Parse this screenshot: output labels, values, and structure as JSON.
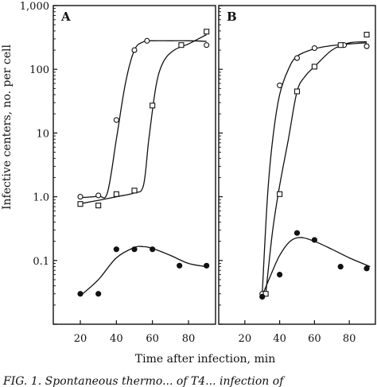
{
  "chart_data": {
    "type": "scatter",
    "ylabel": "Infective centers, no. per cell",
    "xlabel": "Time after infection, min",
    "caption": "FIG. 1.  Spontaneous thermo... of T4... infection of",
    "yscale": "log",
    "ylim": [
      0.01,
      1000
    ],
    "y_ticks": [
      {
        "value": 1000,
        "label": "1,000"
      },
      {
        "value": 100,
        "label": "100"
      },
      {
        "value": 10,
        "label": "10"
      },
      {
        "value": 1,
        "label": "1.0"
      },
      {
        "value": 0.1,
        "label": "0.1"
      }
    ],
    "panels": [
      {
        "label": "A",
        "xlim": [
          5,
          95
        ],
        "x_ticks": [
          20,
          40,
          60,
          80
        ],
        "series": [
          {
            "marker": "open-circle",
            "points": [
              [
                20,
                1.0
              ],
              [
                30,
                1.05
              ],
              [
                40,
                16
              ],
              [
                50,
                200
              ],
              [
                57,
                280
              ],
              [
                90,
                240
              ]
            ],
            "curve": [
              [
                20,
                0.97
              ],
              [
                30,
                1.02
              ],
              [
                35,
                1.15
              ],
              [
                40,
                8
              ],
              [
                45,
                60
              ],
              [
                50,
                200
              ],
              [
                55,
                270
              ],
              [
                60,
                280
              ],
              [
                70,
                280
              ],
              [
                80,
                280
              ],
              [
                90,
                275
              ]
            ]
          },
          {
            "marker": "open-square",
            "points": [
              [
                20,
                0.77
              ],
              [
                30,
                0.73
              ],
              [
                40,
                1.1
              ],
              [
                50,
                1.25
              ],
              [
                60,
                27
              ],
              [
                76,
                240
              ],
              [
                90,
                390
              ]
            ],
            "curve": [
              [
                20,
                0.78
              ],
              [
                30,
                0.88
              ],
              [
                40,
                1.0
              ],
              [
                50,
                1.15
              ],
              [
                55,
                1.5
              ],
              [
                58,
                8
              ],
              [
                62,
                55
              ],
              [
                66,
                130
              ],
              [
                72,
                200
              ],
              [
                80,
                250
              ],
              [
                90,
                350
              ]
            ]
          },
          {
            "marker": "filled-circle",
            "points": [
              [
                20,
                0.03
              ],
              [
                30,
                0.03
              ],
              [
                40,
                0.15
              ],
              [
                50,
                0.15
              ],
              [
                60,
                0.15
              ],
              [
                75,
                0.083
              ],
              [
                90,
                0.083
              ]
            ],
            "curve": [
              [
                20,
                0.028
              ],
              [
                30,
                0.05
              ],
              [
                40,
                0.11
              ],
              [
                50,
                0.16
              ],
              [
                55,
                0.165
              ],
              [
                60,
                0.155
              ],
              [
                70,
                0.12
              ],
              [
                80,
                0.09
              ],
              [
                90,
                0.08
              ]
            ]
          }
        ]
      },
      {
        "label": "B",
        "xlim": [
          5,
          95
        ],
        "x_ticks": [
          20,
          40,
          60,
          80
        ],
        "series": [
          {
            "marker": "open-circle",
            "points": [
              [
                30,
                0.03
              ],
              [
                40,
                56
              ],
              [
                50,
                150
              ],
              [
                60,
                215
              ],
              [
                77,
                240
              ],
              [
                90,
                230
              ]
            ],
            "curve": [
              [
                30,
                0.03
              ],
              [
                33,
                1
              ],
              [
                36,
                8
              ],
              [
                40,
                40
              ],
              [
                45,
                100
              ],
              [
                50,
                160
              ],
              [
                60,
                210
              ],
              [
                70,
                235
              ],
              [
                80,
                250
              ],
              [
                90,
                260
              ]
            ]
          },
          {
            "marker": "open-square",
            "points": [
              [
                32,
                0.03
              ],
              [
                40,
                1.1
              ],
              [
                50,
                45
              ],
              [
                60,
                110
              ],
              [
                75,
                240
              ],
              [
                90,
                350
              ]
            ],
            "curve": [
              [
                32,
                0.03
              ],
              [
                36,
                0.3
              ],
              [
                40,
                1.5
              ],
              [
                45,
                8
              ],
              [
                50,
                45
              ],
              [
                55,
                80
              ],
              [
                60,
                110
              ],
              [
                70,
                200
              ],
              [
                80,
                260
              ],
              [
                90,
                270
              ]
            ]
          },
          {
            "marker": "filled-circle",
            "points": [
              [
                30,
                0.027
              ],
              [
                40,
                0.06
              ],
              [
                50,
                0.27
              ],
              [
                60,
                0.21
              ],
              [
                75,
                0.08
              ],
              [
                90,
                0.075
              ]
            ],
            "curve": [
              [
                30,
                0.028
              ],
              [
                35,
                0.06
              ],
              [
                40,
                0.12
              ],
              [
                46,
                0.2
              ],
              [
                52,
                0.23
              ],
              [
                60,
                0.2
              ],
              [
                70,
                0.15
              ],
              [
                80,
                0.11
              ],
              [
                92,
                0.08
              ]
            ]
          }
        ]
      }
    ]
  }
}
